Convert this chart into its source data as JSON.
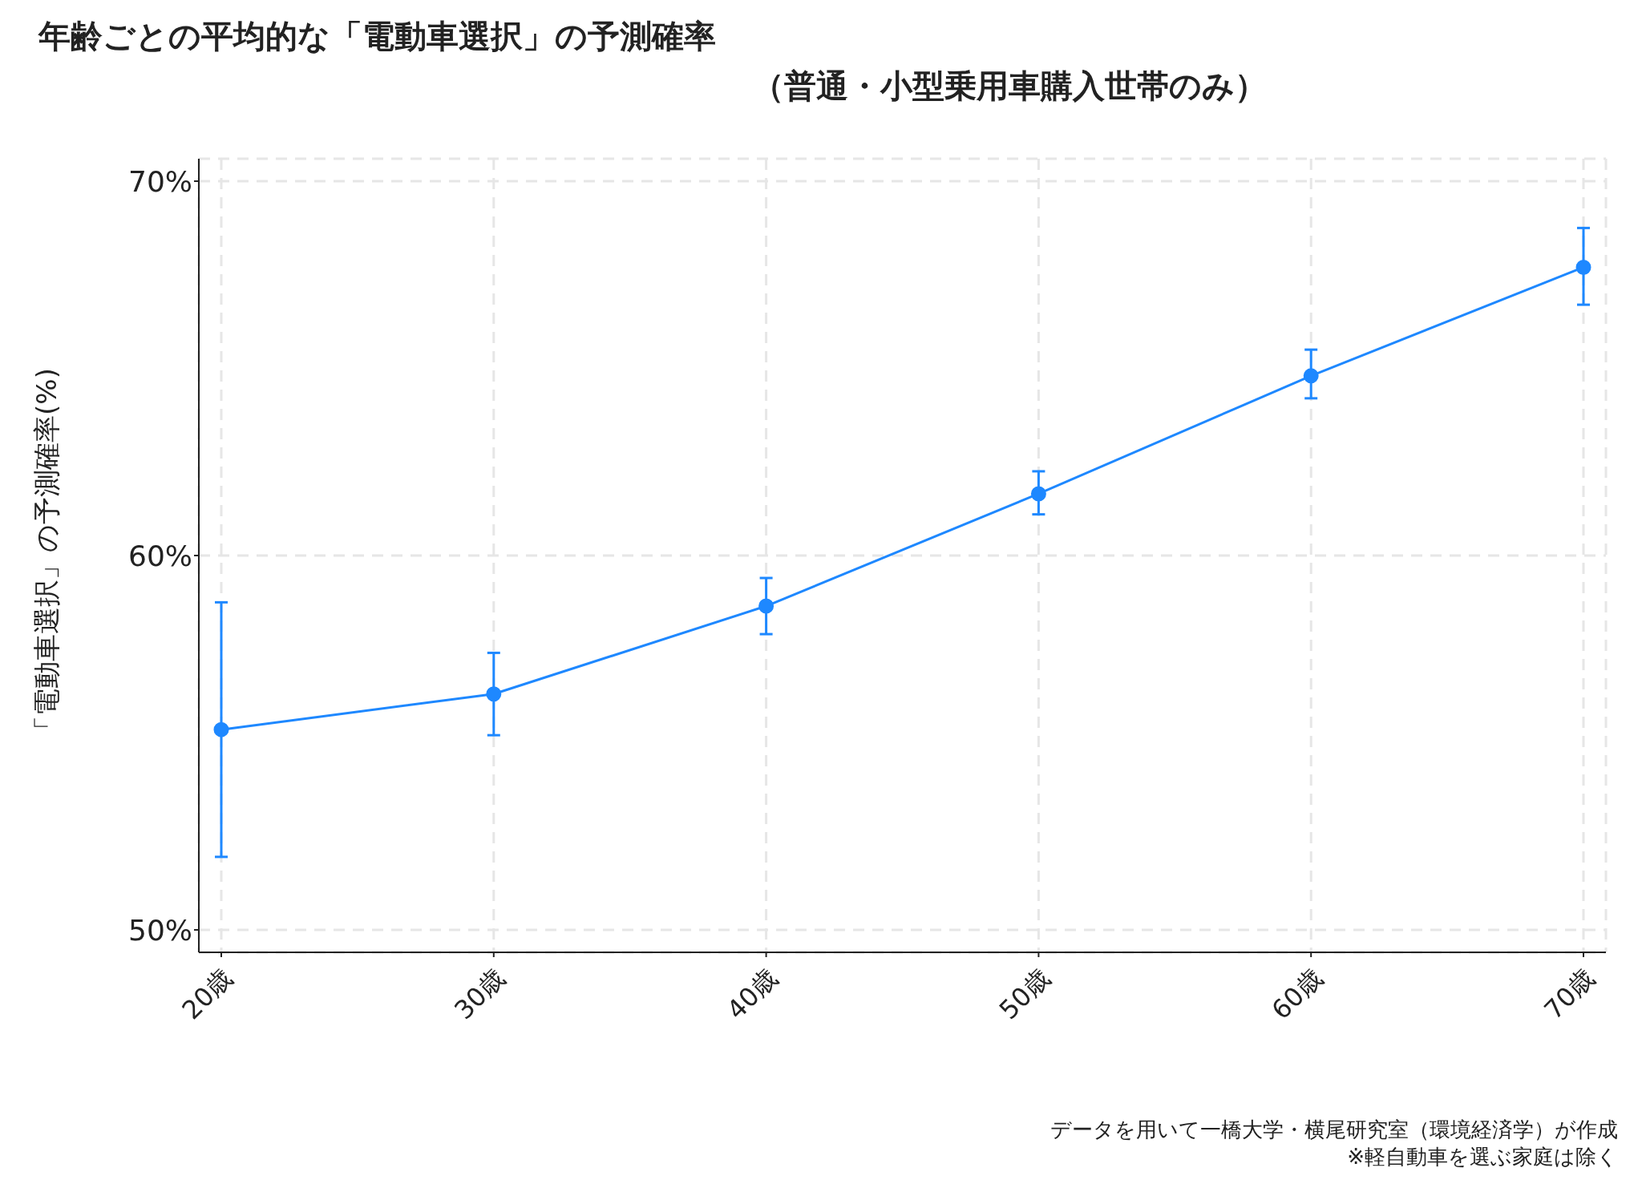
{
  "chart_data": {
    "type": "line",
    "title": "年齢ごとの平均的な「電動車選択」の予測確率",
    "subtitle": "（普通・小型乗用車購入世帯のみ）",
    "ylabel": "「電動車選択」の予測確率(%)",
    "categories": [
      "20歳",
      "30歳",
      "40歳",
      "50歳",
      "60歳",
      "70歳"
    ],
    "series": [
      {
        "color": "#1e88ff",
        "values": [
          55.35,
          56.3,
          58.65,
          61.65,
          64.8,
          67.7
        ],
        "errors": [
          [
            51.95,
            58.75
          ],
          [
            55.2,
            57.4
          ],
          [
            57.9,
            59.4
          ],
          [
            61.1,
            62.25
          ],
          [
            64.2,
            65.5
          ],
          [
            66.7,
            68.75
          ]
        ]
      }
    ],
    "ylim": [
      49.4,
      70.6
    ],
    "yticks": [
      {
        "value": 50,
        "label": "50%"
      },
      {
        "value": 60,
        "label": "60%"
      },
      {
        "value": 70,
        "label": "70%"
      }
    ],
    "grid": true,
    "marker": "circle",
    "line_style": "solid",
    "legend": false,
    "annotations": [
      "データを用いて一橋大学・横尾研究室（環境経済学）が作成",
      "※軽自動車を選ぶ家庭は除く"
    ]
  }
}
